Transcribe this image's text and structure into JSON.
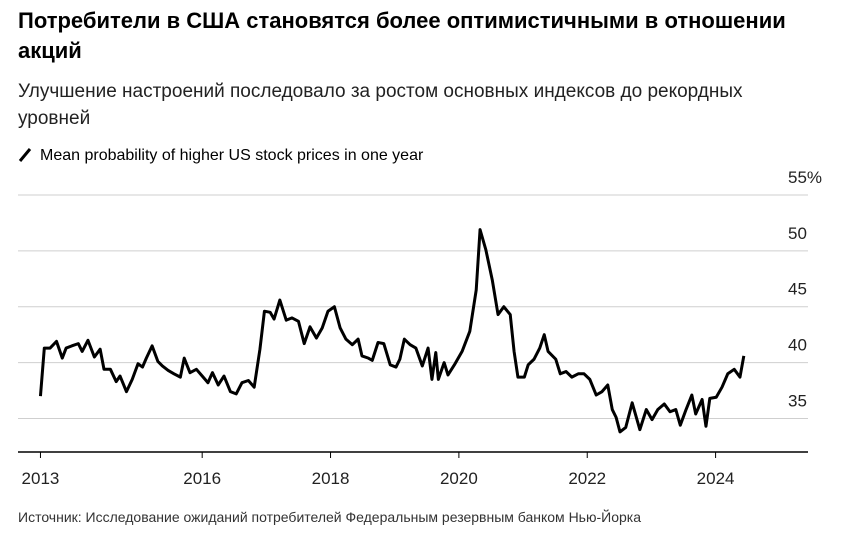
{
  "chart_data": {
    "type": "line",
    "title": "Потребители в США становятся более оптимистичными в отношении акций",
    "subtitle": "Улучшение настроений последовало за ростом основных индексов до рекордных уровней",
    "source": "Источник: Исследование ожиданий потребителей Федеральным резервным банком Нью-Йорка",
    "x": [
      2013.48,
      2013.54,
      2013.63,
      2013.73,
      2013.82,
      2013.88,
      2013.97,
      2014.07,
      2014.13,
      2014.22,
      2014.32,
      2014.41,
      2014.47,
      2014.57,
      2014.66,
      2014.72,
      2014.82,
      2014.91,
      2015.0,
      2015.07,
      2015.13,
      2015.22,
      2015.31,
      2015.38,
      2015.47,
      2015.56,
      2015.66,
      2015.72,
      2015.81,
      2015.91,
      2016.0,
      2016.09,
      2016.16,
      2016.25,
      2016.34,
      2016.44,
      2016.53,
      2016.62,
      2016.72,
      2016.81,
      2016.9,
      2016.97,
      2017.06,
      2017.12,
      2017.21,
      2017.31,
      2017.4,
      2017.5,
      2017.59,
      2017.68,
      2017.78,
      2017.87,
      2017.96,
      2018.06,
      2018.15,
      2018.24,
      2018.34,
      2018.43,
      2018.49,
      2018.59,
      2018.65,
      2018.74,
      2018.83,
      2018.93,
      2019.02,
      2019.08,
      2019.15,
      2019.24,
      2019.33,
      2019.43,
      2019.52,
      2019.58,
      2019.64,
      2019.68,
      2019.77,
      2019.83,
      2019.93,
      2020.05,
      2020.17,
      2020.27,
      2020.33,
      2020.42,
      2020.52,
      2020.61,
      2020.7,
      2020.8,
      2020.86,
      2020.92,
      2021.02,
      2021.08,
      2021.17,
      2021.26,
      2021.33,
      2021.39,
      2021.51,
      2021.58,
      2021.67,
      2021.76,
      2021.86,
      2021.95,
      2022.04,
      2022.14,
      2022.23,
      2022.32,
      2022.39,
      2022.45,
      2022.51,
      2022.6,
      2022.7,
      2022.82,
      2022.92,
      2023.01,
      2023.1,
      2023.2,
      2023.29,
      2023.38,
      2023.45,
      2023.54,
      2023.63,
      2023.69,
      2023.79,
      2023.85,
      2023.91,
      2024.01,
      2024.1,
      2024.19,
      2024.29,
      2024.38,
      2024.44
    ],
    "series": [
      {
        "name": "Mean probability of higher US stock prices in one year",
        "color": "#000000",
        "values": [
          37.0,
          41.3,
          41.3,
          41.9,
          40.4,
          41.3,
          41.5,
          41.7,
          41.0,
          42.0,
          40.5,
          41.2,
          39.4,
          39.4,
          38.3,
          38.8,
          37.4,
          38.5,
          39.9,
          39.6,
          40.4,
          41.5,
          40.1,
          39.7,
          39.3,
          39.0,
          38.7,
          40.4,
          39.1,
          39.4,
          38.8,
          38.2,
          39.1,
          38.0,
          38.8,
          37.4,
          37.2,
          38.2,
          38.4,
          37.8,
          41.2,
          44.6,
          44.5,
          43.9,
          45.6,
          43.8,
          44.0,
          43.7,
          41.7,
          43.2,
          42.2,
          43.1,
          44.6,
          45.0,
          43.1,
          42.1,
          41.6,
          42.1,
          40.6,
          40.4,
          40.2,
          41.8,
          41.7,
          39.8,
          39.6,
          40.3,
          42.1,
          41.6,
          41.3,
          39.7,
          41.3,
          38.5,
          40.9,
          38.5,
          40.0,
          38.9,
          39.8,
          41.0,
          42.8,
          46.5,
          51.9,
          50.1,
          47.4,
          44.3,
          45.0,
          44.3,
          41.0,
          38.7,
          38.7,
          39.8,
          40.3,
          41.3,
          42.5,
          41.0,
          40.3,
          39.0,
          39.2,
          38.7,
          39.0,
          39.0,
          38.5,
          37.1,
          37.4,
          38.0,
          35.8,
          35.1,
          33.8,
          34.2,
          36.4,
          34.0,
          35.8,
          34.9,
          35.8,
          36.3,
          35.6,
          35.8,
          34.4,
          35.8,
          37.1,
          35.4,
          36.7,
          34.3,
          36.8,
          36.9,
          37.8,
          39.0,
          39.4,
          38.7,
          40.6
        ]
      }
    ],
    "xlim": [
      2013.13,
      2025.44
    ],
    "xticks": [
      {
        "value": 2013.48,
        "label": "2013"
      },
      2016,
      2018,
      2020,
      2022,
      2024
    ],
    "ylim": [
      32,
      55
    ],
    "yticks": [
      35,
      40,
      45,
      50,
      {
        "value": 55,
        "label": "55%"
      }
    ],
    "grid": true
  }
}
